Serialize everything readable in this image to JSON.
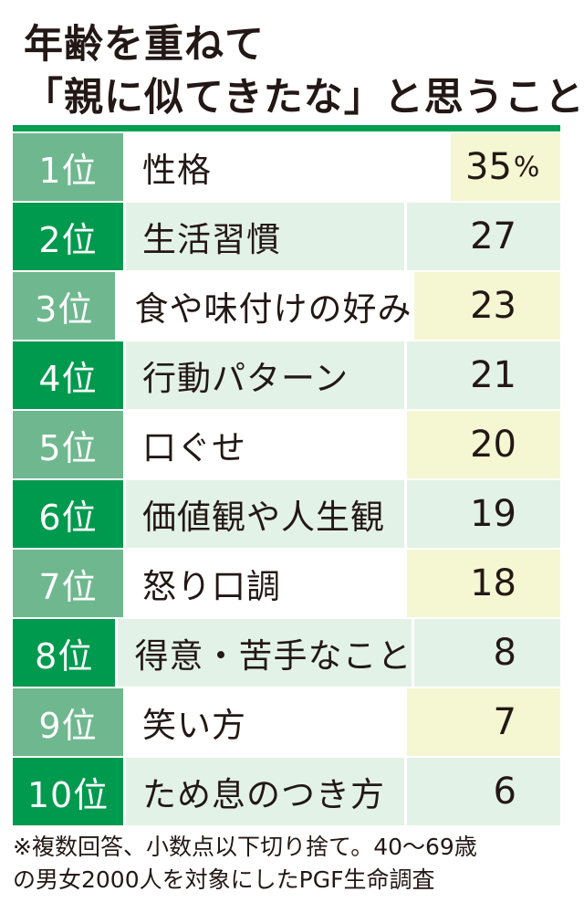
{
  "title_lines": [
    "年齢を重ねて",
    "「親に似てきたな」と思うこと"
  ],
  "colors": {
    "accent_green": "#00a051",
    "rank_dark": "#009a4e",
    "rank_light": "#6fb88f",
    "row_tint": "#e3f2e6",
    "value_highlight": "#f4f7d2"
  },
  "chart_data": {
    "type": "table",
    "title": "年齢を重ねて「親に似てきたな」と思うこと",
    "unit": "%",
    "rows": [
      {
        "rank": "1位",
        "label": "性格",
        "value": "35"
      },
      {
        "rank": "2位",
        "label": "生活習慣",
        "value": "27"
      },
      {
        "rank": "3位",
        "label": "食や味付けの好み",
        "value": "23"
      },
      {
        "rank": "4位",
        "label": "行動パターン",
        "value": "21"
      },
      {
        "rank": "5位",
        "label": "口ぐせ",
        "value": "20"
      },
      {
        "rank": "6位",
        "label": "価値観や人生観",
        "value": "19"
      },
      {
        "rank": "7位",
        "label": "怒り口調",
        "value": "18"
      },
      {
        "rank": "8位",
        "label": "得意・苦手なこと",
        "value": "8"
      },
      {
        "rank": "9位",
        "label": "笑い方",
        "value": "7"
      },
      {
        "rank": "10位",
        "label": "ため息のつき方",
        "value": "6"
      }
    ]
  },
  "note_lines": [
    "※複数回答、小数点以下切り捨て。40～69歳",
    "の男女2000人を対象にしたPGF生命調査"
  ]
}
